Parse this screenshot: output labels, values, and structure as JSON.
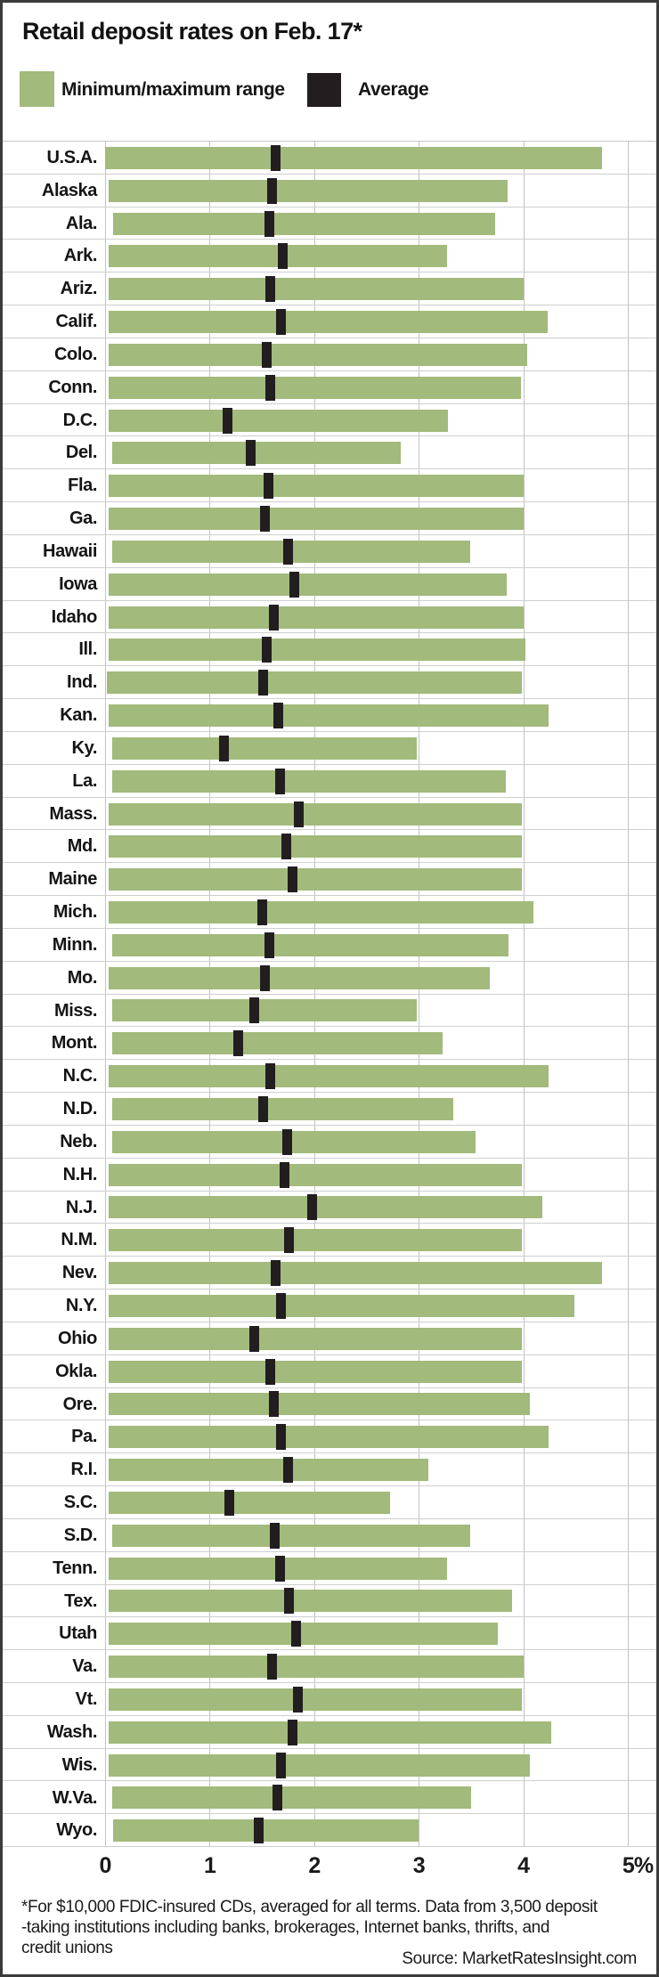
{
  "title": "Retail deposit rates on Feb. 17*",
  "legend": {
    "items": [
      {
        "label": "Minimum/maximum range",
        "swatch": "range-swatch"
      },
      {
        "label": "Average",
        "swatch": "average-swatch"
      }
    ]
  },
  "colors": {
    "range_green": "#a2ba7b",
    "average_black": "#221e1f",
    "gridline_gray": "#c3c3c3",
    "border_gray": "#3b3b3b"
  },
  "footnote_lines": [
    "*For $10,000 FDIC-insured CDs, averaged for all terms. Data from 3,500 deposit",
    "-taking institutions including banks, brokerages, Internet banks, thrifts, and",
    "credit unions"
  ],
  "source": "Source: MarketRatesInsight.com",
  "chart_data": {
    "type": "bar",
    "subtype": "horizontal-range-bars-with-average-marker",
    "title": "Retail deposit rates on Feb. 17*",
    "xlabel": "",
    "ylabel": "",
    "xlim": [
      0,
      5
    ],
    "x_ticks": [
      "0",
      "1",
      "2",
      "3",
      "4",
      "5%"
    ],
    "grid": true,
    "legend_position": "top",
    "legend_entries": [
      "Minimum/maximum range",
      "Average"
    ],
    "categories": [
      "U.S.A.",
      "Alaska",
      "Ala.",
      "Ark.",
      "Ariz.",
      "Calif.",
      "Colo.",
      "Conn.",
      "D.C.",
      "Del.",
      "Fla.",
      "Ga.",
      "Hawaii",
      "Iowa",
      "Idaho",
      "Ill.",
      "Ind.",
      "Kan.",
      "Ky.",
      "La.",
      "Mass.",
      "Md.",
      "Maine",
      "Mich.",
      "Minn.",
      "Mo.",
      "Miss.",
      "Mont.",
      "N.C.",
      "N.D.",
      "Neb.",
      "N.H.",
      "N.J.",
      "N.M.",
      "Nev.",
      "N.Y.",
      "Ohio",
      "Okla.",
      "Ore.",
      "Pa.",
      "R.I.",
      "S.C.",
      "S.D.",
      "Tenn.",
      "Tex.",
      "Utah",
      "Va.",
      "Vt.",
      "Wash.",
      "Wis.",
      "W.Va.",
      "Wyo."
    ],
    "series": [
      {
        "name": "minimum",
        "values": [
          0.0,
          0.03,
          0.08,
          0.03,
          0.03,
          0.03,
          0.03,
          0.03,
          0.03,
          0.07,
          0.03,
          0.03,
          0.07,
          0.03,
          0.03,
          0.03,
          0.02,
          0.03,
          0.07,
          0.07,
          0.03,
          0.03,
          0.03,
          0.03,
          0.07,
          0.03,
          0.07,
          0.07,
          0.03,
          0.07,
          0.07,
          0.03,
          0.03,
          0.03,
          0.03,
          0.03,
          0.03,
          0.03,
          0.03,
          0.03,
          0.03,
          0.03,
          0.07,
          0.03,
          0.03,
          0.03,
          0.03,
          0.03,
          0.03,
          0.03,
          0.07,
          0.08
        ]
      },
      {
        "name": "maximum",
        "values": [
          4.75,
          3.85,
          3.73,
          3.27,
          4.0,
          4.23,
          4.04,
          3.98,
          3.28,
          2.83,
          4.0,
          4.0,
          3.49,
          3.84,
          4.0,
          4.02,
          3.99,
          4.24,
          2.98,
          3.83,
          3.99,
          3.99,
          3.99,
          4.1,
          3.86,
          3.68,
          2.98,
          3.23,
          4.24,
          3.33,
          3.54,
          3.99,
          4.18,
          3.99,
          4.75,
          4.49,
          3.99,
          3.99,
          4.06,
          4.24,
          3.09,
          2.73,
          3.49,
          3.27,
          3.89,
          3.76,
          4.0,
          3.99,
          4.27,
          4.06,
          3.5,
          3.0
        ]
      },
      {
        "name": "average",
        "values": [
          1.63,
          1.6,
          1.57,
          1.7,
          1.58,
          1.68,
          1.55,
          1.58,
          1.17,
          1.39,
          1.56,
          1.53,
          1.75,
          1.81,
          1.61,
          1.55,
          1.51,
          1.66,
          1.14,
          1.67,
          1.85,
          1.73,
          1.79,
          1.5,
          1.57,
          1.53,
          1.43,
          1.27,
          1.58,
          1.51,
          1.74,
          1.72,
          1.98,
          1.76,
          1.63,
          1.68,
          1.43,
          1.58,
          1.61,
          1.68,
          1.75,
          1.19,
          1.62,
          1.67,
          1.76,
          1.83,
          1.6,
          1.84,
          1.79,
          1.68,
          1.65,
          1.47
        ]
      }
    ]
  }
}
